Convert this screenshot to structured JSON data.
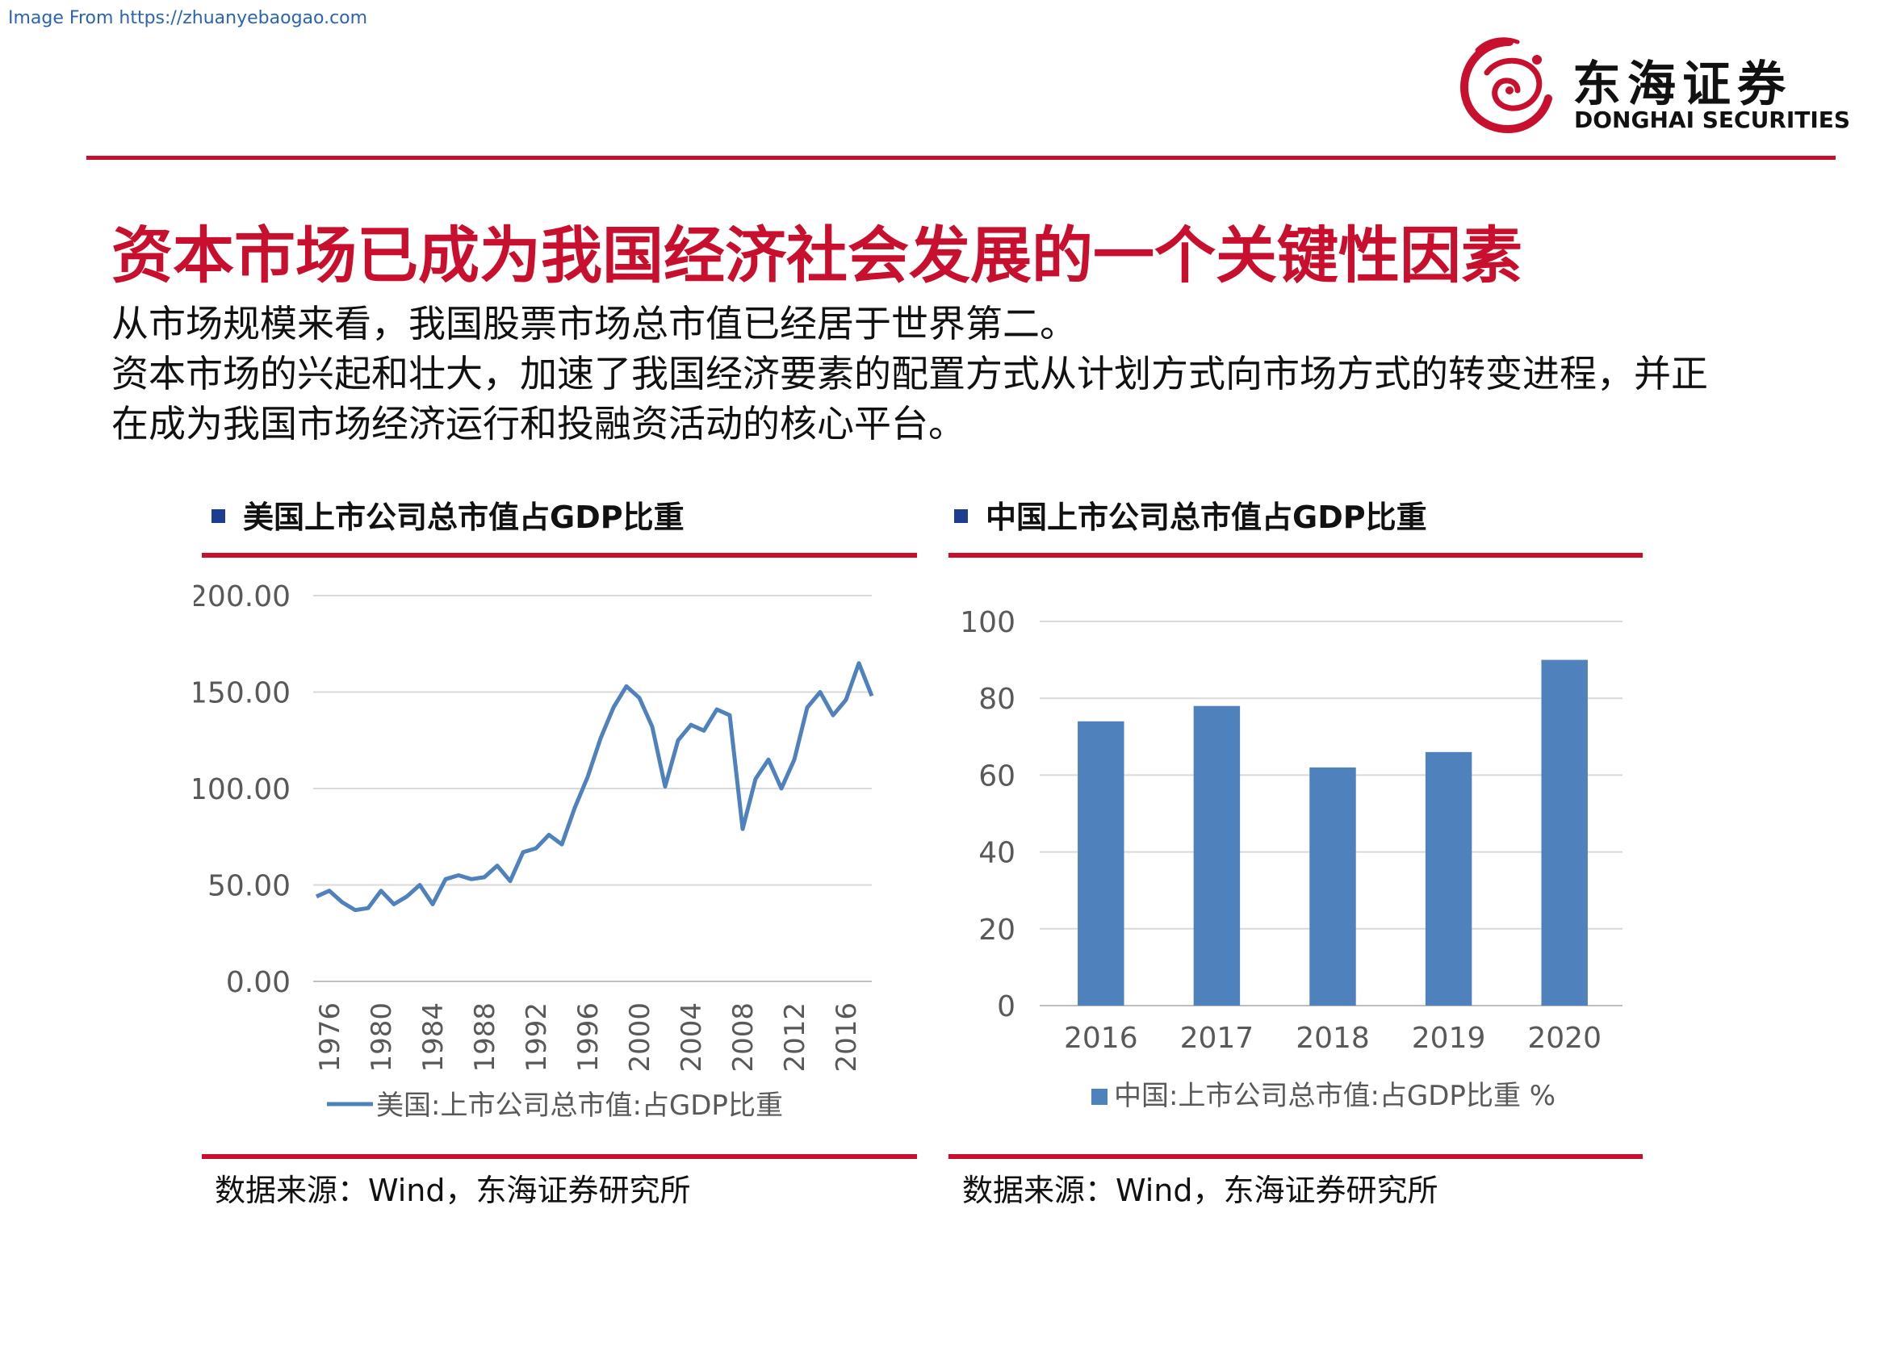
{
  "watermark": "Image From https://zhuanyebaogao.com",
  "logo": {
    "name_cn": "东海证券",
    "name_en": "DONGHAI SECURITIES"
  },
  "colors": {
    "accent_red": "#c8102e",
    "series_blue": "#4f81bd",
    "bullet_navy": "#1f3d8f"
  },
  "title": "资本市场已成为我国经济社会发展的一个关键性因素",
  "intro": [
    "从市场规模来看，我国股票市场总市值已经居于世界第二。",
    "资本市场的兴起和壮大，加速了我国经济要素的配置方式从计划方式向市场方式的转变进程，并正在成为我国市场经济运行和投融资活动的核心平台。"
  ],
  "left_panel": {
    "title": "美国上市公司总市值占GDP比重",
    "source": "数据来源：Wind，东海证券研究所"
  },
  "right_panel": {
    "title": "中国上市公司总市值占GDP比重",
    "source": "数据来源：Wind，东海证券研究所"
  },
  "chart_data": [
    {
      "type": "line",
      "title": "美国上市公司总市值占GDP比重",
      "xlabel": "",
      "ylabel": "",
      "ylim": [
        0,
        200
      ],
      "y_ticks": [
        "0.00",
        "50.00",
        "100.00",
        "150.00",
        "200.00"
      ],
      "x_ticks": [
        "1976",
        "1980",
        "1984",
        "1988",
        "1992",
        "1996",
        "2000",
        "2004",
        "2008",
        "2012",
        "2016"
      ],
      "grid": true,
      "legend": "bottom",
      "series": [
        {
          "name": "美国:上市公司总市值:占GDP比重",
          "x": [
            1975,
            1976,
            1977,
            1978,
            1979,
            1980,
            1981,
            1982,
            1983,
            1984,
            1985,
            1986,
            1987,
            1988,
            1989,
            1990,
            1991,
            1992,
            1993,
            1994,
            1995,
            1996,
            1997,
            1998,
            1999,
            2000,
            2001,
            2002,
            2003,
            2004,
            2005,
            2006,
            2007,
            2008,
            2009,
            2010,
            2011,
            2012,
            2013,
            2014,
            2015,
            2016,
            2017,
            2018
          ],
          "values": [
            44,
            47,
            41,
            37,
            38,
            47,
            40,
            44,
            50,
            40,
            53,
            55,
            53,
            54,
            60,
            52,
            67,
            69,
            76,
            71,
            90,
            106,
            126,
            142,
            153,
            147,
            132,
            101,
            125,
            133,
            130,
            141,
            138,
            79,
            105,
            115,
            100,
            115,
            142,
            150,
            138,
            146,
            165,
            148
          ]
        }
      ]
    },
    {
      "type": "bar",
      "title": "中国上市公司总市值占GDP比重",
      "xlabel": "",
      "ylabel": "",
      "ylim": [
        0,
        100
      ],
      "y_ticks": [
        "0",
        "20",
        "40",
        "60",
        "80",
        "100"
      ],
      "categories": [
        "2016",
        "2017",
        "2018",
        "2019",
        "2020"
      ],
      "grid": true,
      "legend": "bottom",
      "series": [
        {
          "name": "中国:上市公司总市值:占GDP比重 %",
          "values": [
            74,
            78,
            62,
            66,
            90
          ]
        }
      ]
    }
  ]
}
